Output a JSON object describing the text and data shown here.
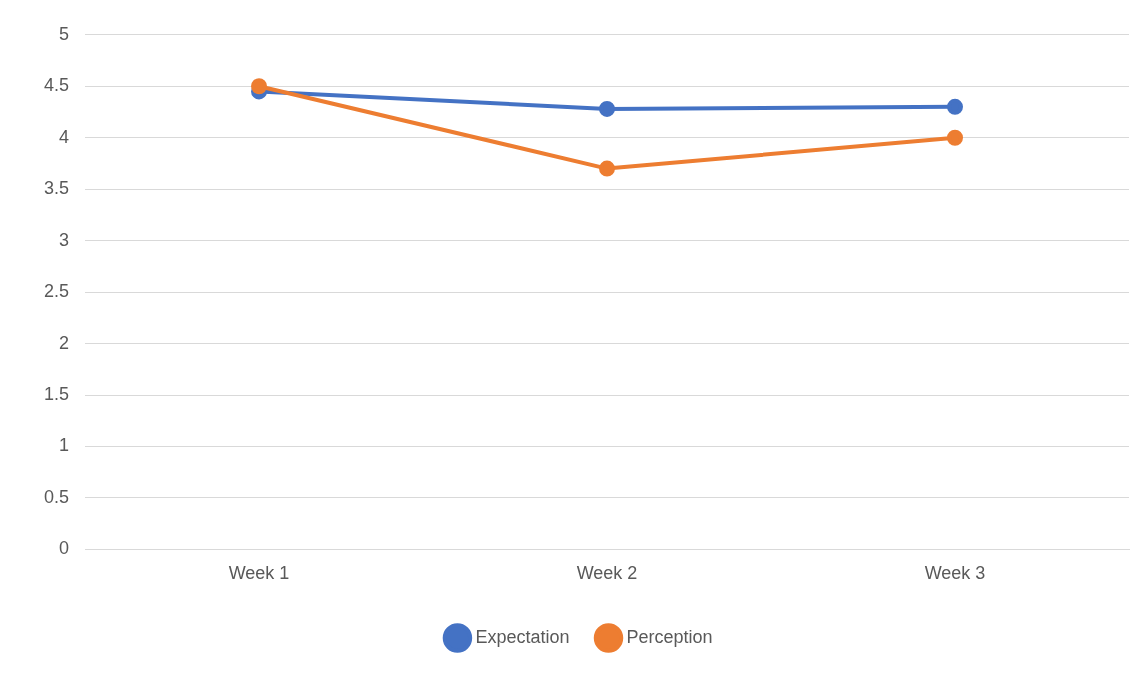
{
  "chart_data": {
    "type": "line",
    "categories": [
      "Week 1",
      "Week 2",
      "Week 3"
    ],
    "series": [
      {
        "name": "Expectation",
        "color": "#4472c4",
        "values": [
          4.45,
          4.28,
          4.3
        ]
      },
      {
        "name": "Perception",
        "color": "#ed7d31",
        "values": [
          4.5,
          3.7,
          4.0
        ]
      }
    ],
    "ylim": [
      0,
      5
    ],
    "yticks": [
      0,
      0.5,
      1,
      1.5,
      2,
      2.5,
      3,
      3.5,
      4,
      4.5,
      5
    ],
    "grid": "y",
    "legend": "bottom",
    "marker": "circle",
    "line_style": "solid"
  }
}
